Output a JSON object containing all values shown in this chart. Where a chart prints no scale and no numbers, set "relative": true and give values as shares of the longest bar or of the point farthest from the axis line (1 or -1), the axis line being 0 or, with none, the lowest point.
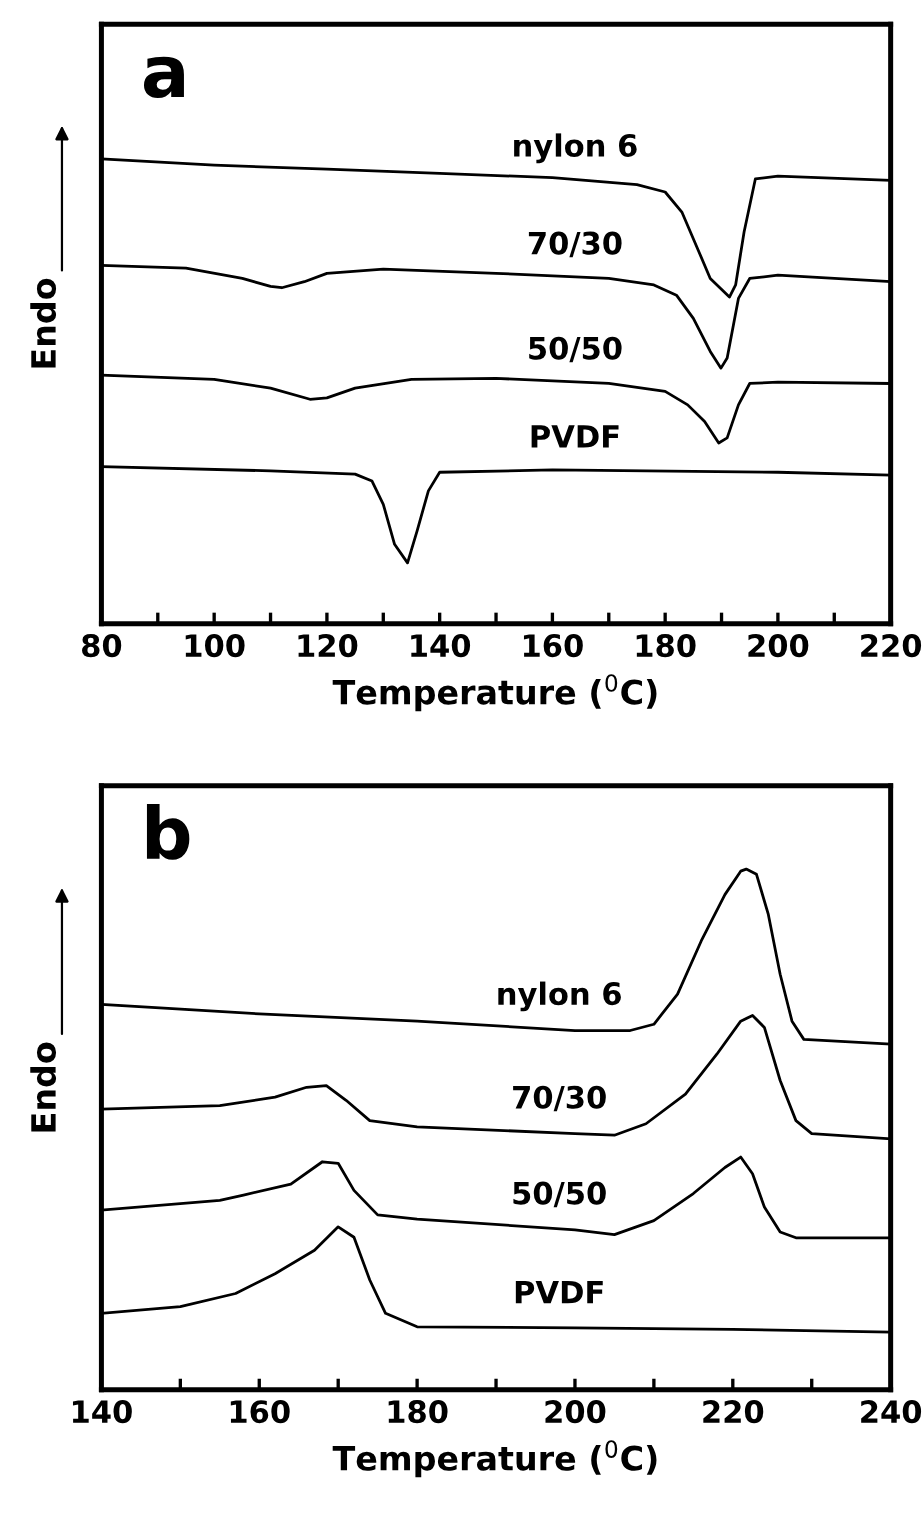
{
  "chart_data": [
    {
      "type": "line",
      "relative": true,
      "xlabel": "Temperature ($^{0}$C)",
      "ylabel": "Endo",
      "annotations": [
        "a"
      ],
      "xlim": [
        80,
        220
      ],
      "xticks": [
        80,
        {
          "value": 90,
          "label": null
        },
        100,
        {
          "value": 110,
          "label": null
        },
        120,
        {
          "value": 130,
          "label": null
        },
        140,
        {
          "value": 150,
          "label": null
        },
        160,
        {
          "value": 170,
          "label": null
        },
        180,
        {
          "value": 190,
          "label": null
        },
        200,
        {
          "value": 210,
          "label": null
        },
        220
      ],
      "tick_labels": "x",
      "grid": false,
      "series": [
        {
          "name": "nylon 6",
          "color": "#000000",
          "x": [
            80,
            100,
            120,
            140,
            160,
            175,
            180,
            183,
            186,
            188,
            191.4,
            192.5,
            194,
            196,
            200,
            220
          ],
          "values": [
            1.0,
            0.987,
            0.978,
            0.969,
            0.96,
            0.945,
            0.929,
            0.885,
            0.8,
            0.743,
            0.703,
            0.729,
            0.843,
            0.957,
            0.963,
            0.954
          ]
        },
        {
          "name": "70/30",
          "color": "#000000",
          "x": [
            80,
            95,
            105,
            110,
            112,
            116,
            120,
            130,
            150,
            170,
            178,
            182,
            185,
            188,
            189.9,
            191,
            193,
            195,
            200,
            220
          ],
          "values": [
            0.771,
            0.765,
            0.743,
            0.726,
            0.723,
            0.736,
            0.754,
            0.763,
            0.754,
            0.743,
            0.729,
            0.707,
            0.657,
            0.586,
            0.55,
            0.572,
            0.7,
            0.743,
            0.75,
            0.736
          ]
        },
        {
          "name": "50/50",
          "color": "#000000",
          "x": [
            80,
            100,
            110,
            117,
            120,
            125,
            135,
            150,
            170,
            180,
            184,
            187,
            189.5,
            191,
            193,
            195,
            200,
            220
          ],
          "values": [
            0.535,
            0.526,
            0.507,
            0.483,
            0.486,
            0.507,
            0.526,
            0.528,
            0.517,
            0.5,
            0.471,
            0.435,
            0.389,
            0.4,
            0.471,
            0.517,
            0.52,
            0.517
          ]
        },
        {
          "name": "PVDF",
          "color": "#000000",
          "x": [
            80,
            110,
            125,
            128,
            130,
            132,
            134.3,
            136,
            138,
            140,
            160,
            200,
            220
          ],
          "values": [
            0.338,
            0.329,
            0.322,
            0.307,
            0.257,
            0.171,
            0.131,
            0.2,
            0.286,
            0.326,
            0.331,
            0.326,
            0.32
          ]
        }
      ]
    },
    {
      "type": "line",
      "relative": true,
      "xlabel": "Temperature ($^{0}$C)",
      "ylabel": "Endo",
      "annotations": [
        "b"
      ],
      "xlim": [
        140,
        240
      ],
      "xticks": [
        140,
        {
          "value": 150,
          "label": null
        },
        160,
        {
          "value": 170,
          "label": null
        },
        180,
        {
          "value": 190,
          "label": null
        },
        200,
        {
          "value": 210,
          "label": null
        },
        220,
        {
          "value": 230,
          "label": null
        },
        240
      ],
      "tick_labels": "x",
      "grid": false,
      "series": [
        {
          "name": "nylon 6",
          "color": "#000000",
          "x": [
            140,
            160,
            180,
            200,
            207,
            210,
            213,
            216,
            219,
            221,
            221.7,
            223,
            224.5,
            226,
            227.5,
            229,
            240
          ],
          "values": [
            0.74,
            0.722,
            0.708,
            0.69,
            0.69,
            0.702,
            0.76,
            0.862,
            0.951,
            0.996,
            1.0,
            0.99,
            0.913,
            0.798,
            0.708,
            0.673,
            0.664
          ]
        },
        {
          "name": "70/30",
          "color": "#000000",
          "x": [
            140,
            155,
            162,
            166,
            168.5,
            171,
            174,
            180,
            200,
            205,
            209,
            214,
            218,
            221,
            222.5,
            224,
            226,
            228,
            230,
            240
          ],
          "values": [
            0.539,
            0.546,
            0.562,
            0.581,
            0.584,
            0.556,
            0.517,
            0.505,
            0.492,
            0.489,
            0.511,
            0.568,
            0.645,
            0.708,
            0.719,
            0.696,
            0.594,
            0.517,
            0.492,
            0.482
          ]
        },
        {
          "name": "50/50",
          "color": "#000000",
          "x": [
            140,
            155,
            158,
            164,
            168,
            170,
            172,
            175,
            180,
            200,
            205,
            210,
            215,
            219,
            221,
            222.5,
            224,
            226,
            228,
            240
          ],
          "values": [
            0.345,
            0.364,
            0.374,
            0.395,
            0.438,
            0.435,
            0.383,
            0.336,
            0.328,
            0.307,
            0.298,
            0.325,
            0.377,
            0.427,
            0.447,
            0.415,
            0.351,
            0.303,
            0.292,
            0.292
          ]
        },
        {
          "name": "PVDF",
          "color": "#000000",
          "x": [
            140,
            150,
            157,
            162,
            167,
            170,
            172,
            174,
            176,
            180,
            200,
            220,
            240
          ],
          "values": [
            0.147,
            0.16,
            0.185,
            0.223,
            0.268,
            0.313,
            0.293,
            0.211,
            0.147,
            0.121,
            0.119,
            0.116,
            0.111
          ]
        }
      ]
    }
  ]
}
